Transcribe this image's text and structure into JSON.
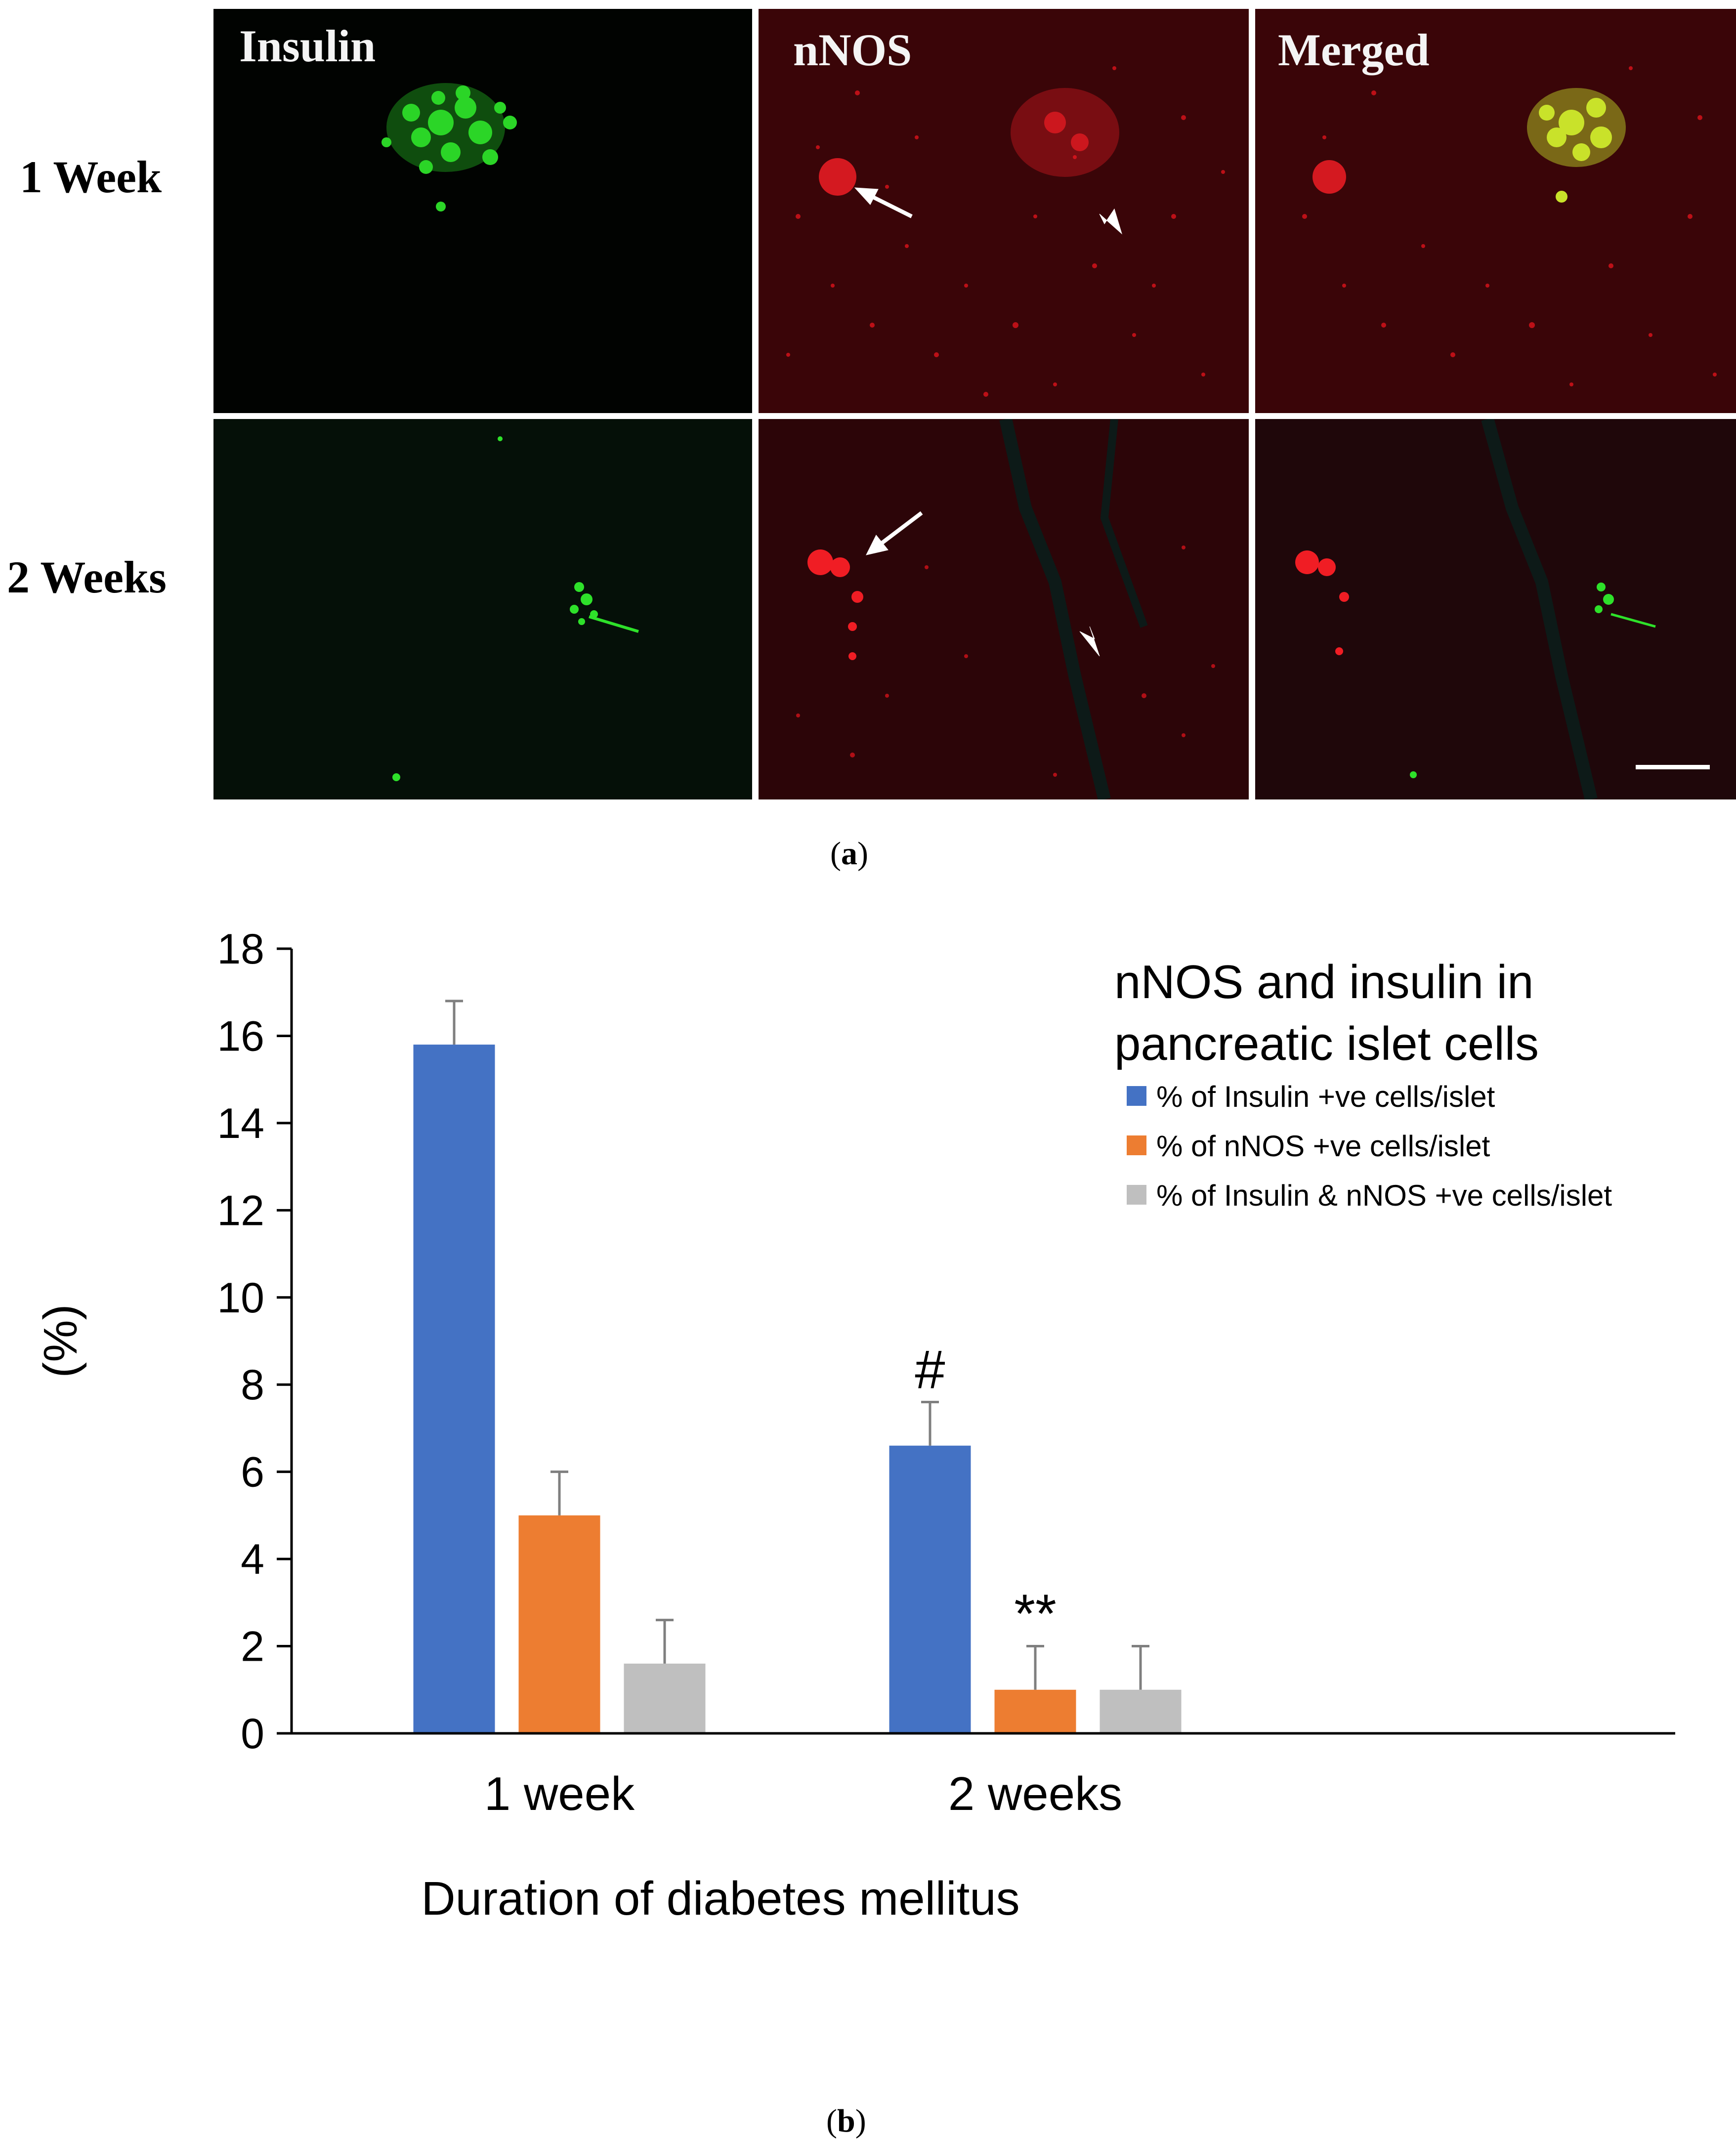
{
  "figure_a": {
    "row_labels": [
      "1 Week",
      "2 Weeks"
    ],
    "column_titles": [
      "Insulin",
      "nNOS",
      "Merged"
    ],
    "caption_open": "(",
    "caption_letter": "a",
    "caption_close": ")"
  },
  "figure_b": {
    "caption_open": "(",
    "caption_letter": "b",
    "caption_close": ")"
  },
  "chart_data": {
    "type": "bar",
    "title": "nNOS and insulin in pancreatic islet cells",
    "title_lines": [
      "nNOS and insulin in",
      "pancreatic islet cells"
    ],
    "xlabel": "Duration of diabetes mellitus",
    "ylabel": "(%)",
    "categories": [
      "1 week",
      "2 weeks"
    ],
    "ylim": [
      0,
      18
    ],
    "yticks": [
      0,
      2,
      4,
      6,
      8,
      10,
      12,
      14,
      16,
      18
    ],
    "grid": false,
    "legend_position": "top-right",
    "series": [
      {
        "name": "% of Insulin +ve cells/islet",
        "color": "#4472C4",
        "values": [
          15.8,
          6.6
        ],
        "errors": [
          1.0,
          1.0
        ]
      },
      {
        "name": "% of nNOS +ve cells/islet",
        "color": "#ED7D31",
        "values": [
          5.0,
          1.0
        ],
        "errors": [
          1.0,
          1.0
        ]
      },
      {
        "name": "% of Insulin & nNOS +ve cells/islet",
        "color": "#BFBFBF",
        "values": [
          1.6,
          1.0
        ],
        "errors": [
          1.0,
          1.0
        ]
      }
    ],
    "annotations": [
      {
        "text": "#",
        "category": 1,
        "series": 0
      },
      {
        "text": "**",
        "category": 1,
        "series": 1
      }
    ]
  }
}
